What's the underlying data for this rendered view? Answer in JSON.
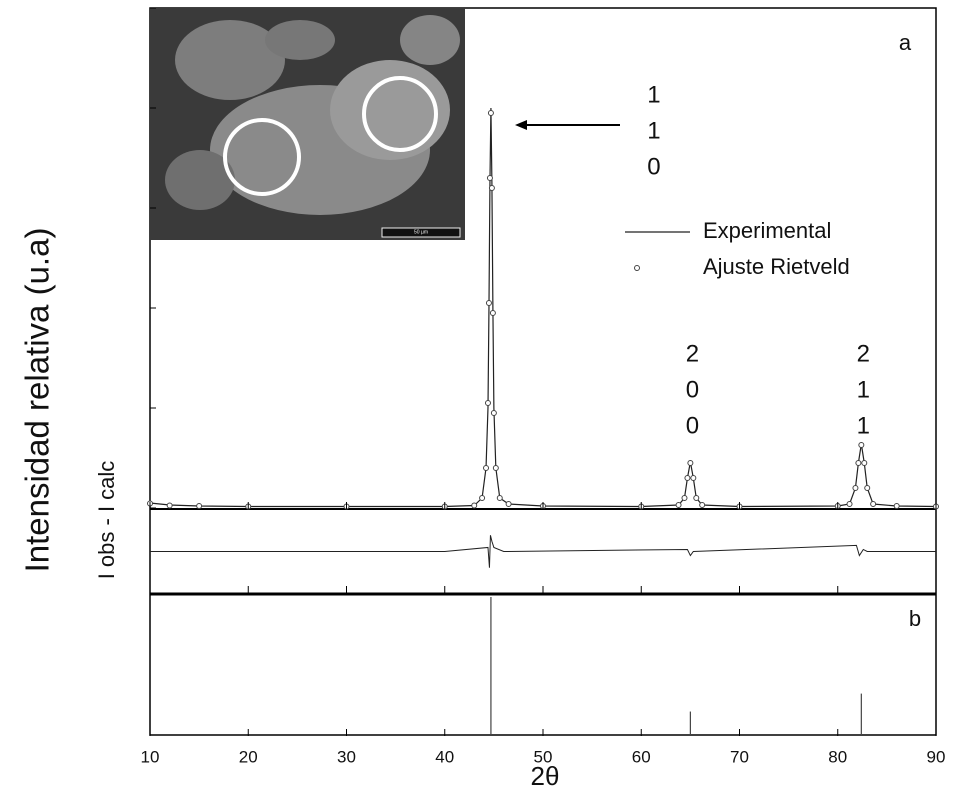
{
  "chart_data": [
    {
      "type": "line",
      "annotation": "a",
      "ylabel": "Intensidad relativa (u.a)",
      "x": [
        10,
        12,
        15,
        20,
        30,
        40,
        43,
        43.8,
        44.2,
        44.4,
        44.5,
        44.6,
        44.7,
        44.8,
        44.9,
        45.0,
        45.2,
        45.6,
        46.5,
        50,
        60,
        63.8,
        64.4,
        64.7,
        65.0,
        65.3,
        65.6,
        66.2,
        70,
        80,
        81.2,
        81.8,
        82.1,
        82.4,
        82.7,
        83.0,
        83.6,
        86,
        90
      ],
      "series": [
        {
          "name": "Experimental",
          "color": "#222222",
          "style": "line",
          "values": [
            1.0,
            0.6,
            0.4,
            0.3,
            0.3,
            0.3,
            0.5,
            2,
            8,
            20,
            40,
            65,
            80,
            65,
            40,
            20,
            8,
            2,
            0.8,
            0.4,
            0.3,
            0.6,
            2,
            6,
            9.2,
            6,
            2,
            0.6,
            0.3,
            0.4,
            0.8,
            4,
            9,
            12.8,
            9,
            4,
            0.8,
            0.4,
            0.3
          ]
        },
        {
          "name": "Ajuste Rietveld",
          "color": "#444444",
          "style": "markers",
          "values": [
            0.9,
            0.5,
            0.4,
            0.3,
            0.3,
            0.3,
            0.5,
            2,
            8,
            21,
            41,
            66,
            79,
            64,
            39,
            19,
            8,
            2,
            0.8,
            0.4,
            0.3,
            0.6,
            2,
            6,
            9,
            6,
            2,
            0.6,
            0.3,
            0.4,
            0.8,
            4,
            9,
            12.6,
            9,
            4,
            0.8,
            0.4,
            0.3
          ]
        }
      ],
      "xlim": [
        10,
        90
      ],
      "ylim": [
        0,
        100
      ],
      "yticks": [
        0,
        20,
        40,
        60,
        80,
        100
      ],
      "inset_scale": "50 µm"
    },
    {
      "type": "line",
      "ylabel": "I obs - I calc",
      "color": "#222222",
      "x": [
        10,
        40,
        44.4,
        44.55,
        44.65,
        44.8,
        45.0,
        46,
        64.7,
        65.0,
        65.3,
        81.9,
        82.2,
        82.6,
        83.0,
        90
      ],
      "values": [
        0,
        0,
        0.1,
        -0.4,
        0.4,
        0.25,
        0.1,
        0,
        0.05,
        -0.1,
        0,
        0.15,
        -0.1,
        0.05,
        0,
        0
      ],
      "xlim": [
        10,
        90
      ],
      "ylim": [
        -1,
        1
      ]
    },
    {
      "type": "bar",
      "annotation": "b",
      "xlabel": "2θ",
      "color": "#444444",
      "x": [
        44.7,
        65.0,
        82.4
      ],
      "values": [
        100,
        17,
        30
      ],
      "labels": [
        [
          "1",
          "1",
          "0"
        ],
        [
          "2",
          "0",
          "0"
        ],
        [
          "2",
          "1",
          "1"
        ]
      ],
      "xlim": [
        10,
        90
      ],
      "ylim": [
        0,
        100
      ],
      "xticks": [
        10,
        20,
        30,
        40,
        50,
        60,
        70,
        80,
        90
      ]
    }
  ]
}
